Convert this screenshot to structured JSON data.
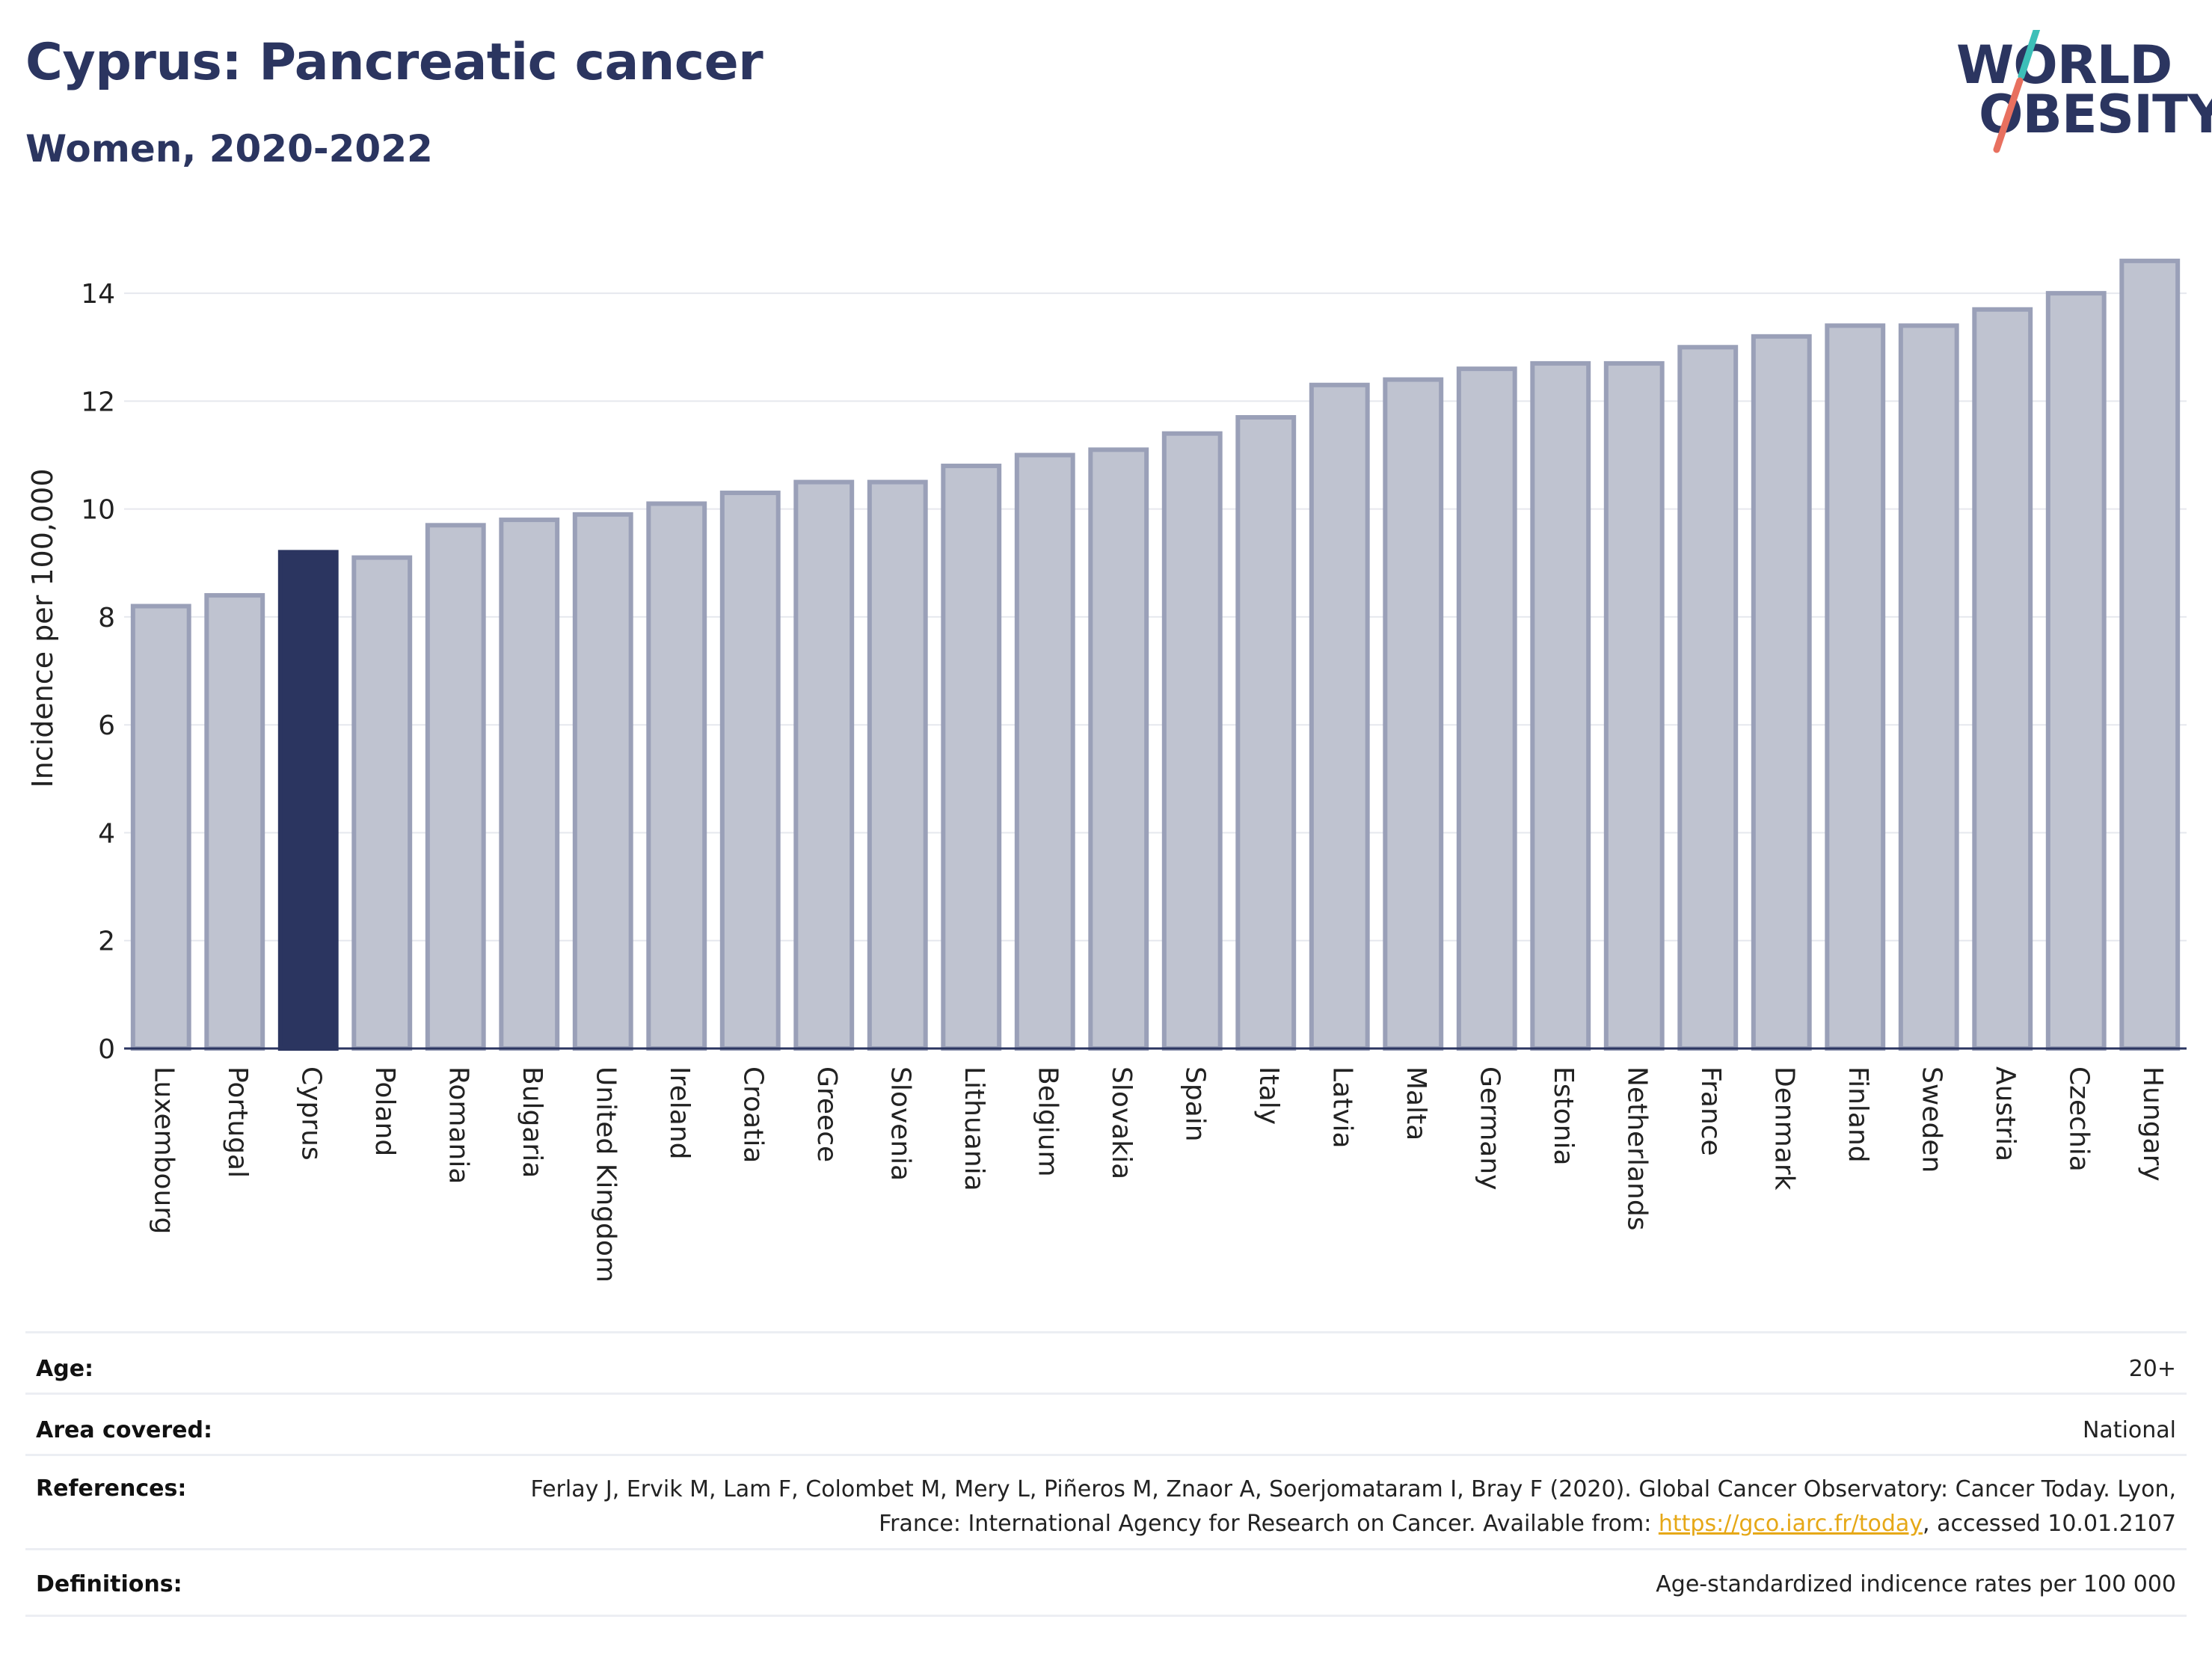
{
  "header": {
    "title": "Cyprus: Pancreatic cancer",
    "subtitle": "Women, 2020-2022"
  },
  "logo": {
    "line1": "WORLD",
    "line2": "OBESITY",
    "colors": {
      "text": "#2b3560",
      "slash_top": "#3dbfb8",
      "slash_bottom": "#e8705f"
    }
  },
  "chart_data": {
    "type": "bar",
    "ylabel": "Incidence per 100,000",
    "xlabel": "",
    "ylim": [
      0,
      15
    ],
    "yticks": [
      0,
      2,
      4,
      6,
      8,
      10,
      12,
      14
    ],
    "grid": true,
    "highlight": "Cyprus",
    "colors": {
      "bar": "#bfc3d0",
      "bar_edge": "#9aa0b8",
      "highlight": "#2b3560",
      "grid": "#e6e8ee",
      "axis": "#2b3560"
    },
    "categories": [
      "Luxembourg",
      "Portugal",
      "Cyprus",
      "Poland",
      "Romania",
      "Bulgaria",
      "United Kingdom",
      "Ireland",
      "Croatia",
      "Greece",
      "Slovenia",
      "Lithuania",
      "Belgium",
      "Slovakia",
      "Spain",
      "Italy",
      "Latvia",
      "Malta",
      "Germany",
      "Estonia",
      "Netherlands",
      "France",
      "Denmark",
      "Finland",
      "Sweden",
      "Austria",
      "Czechia",
      "Hungary"
    ],
    "values": [
      8.2,
      8.4,
      9.2,
      9.1,
      9.7,
      9.8,
      9.9,
      10.1,
      10.3,
      10.5,
      10.5,
      10.8,
      11.0,
      11.1,
      11.4,
      11.7,
      12.3,
      12.4,
      12.6,
      12.7,
      12.7,
      13.0,
      13.2,
      13.4,
      13.4,
      13.7,
      14.0,
      14.6
    ]
  },
  "meta": {
    "age_label": "Age:",
    "age_value": "20+",
    "area_label": "Area covered:",
    "area_value": "National",
    "references_label": "References:",
    "references_text": "Ferlay J, Ervik M, Lam F, Colombet M, Mery L, Piñeros M, Znaor A, Soerjomataram I, Bray F (2020). Global Cancer Observatory: Cancer Today. Lyon, France: International Agency for Research on Cancer. Available from: ",
    "references_link": "https://gco.iarc.fr/today",
    "references_suffix": ", accessed 10.01.2107",
    "definitions_label": "Definitions:",
    "definitions_value": "Age-standardized indicence rates per 100 000"
  }
}
